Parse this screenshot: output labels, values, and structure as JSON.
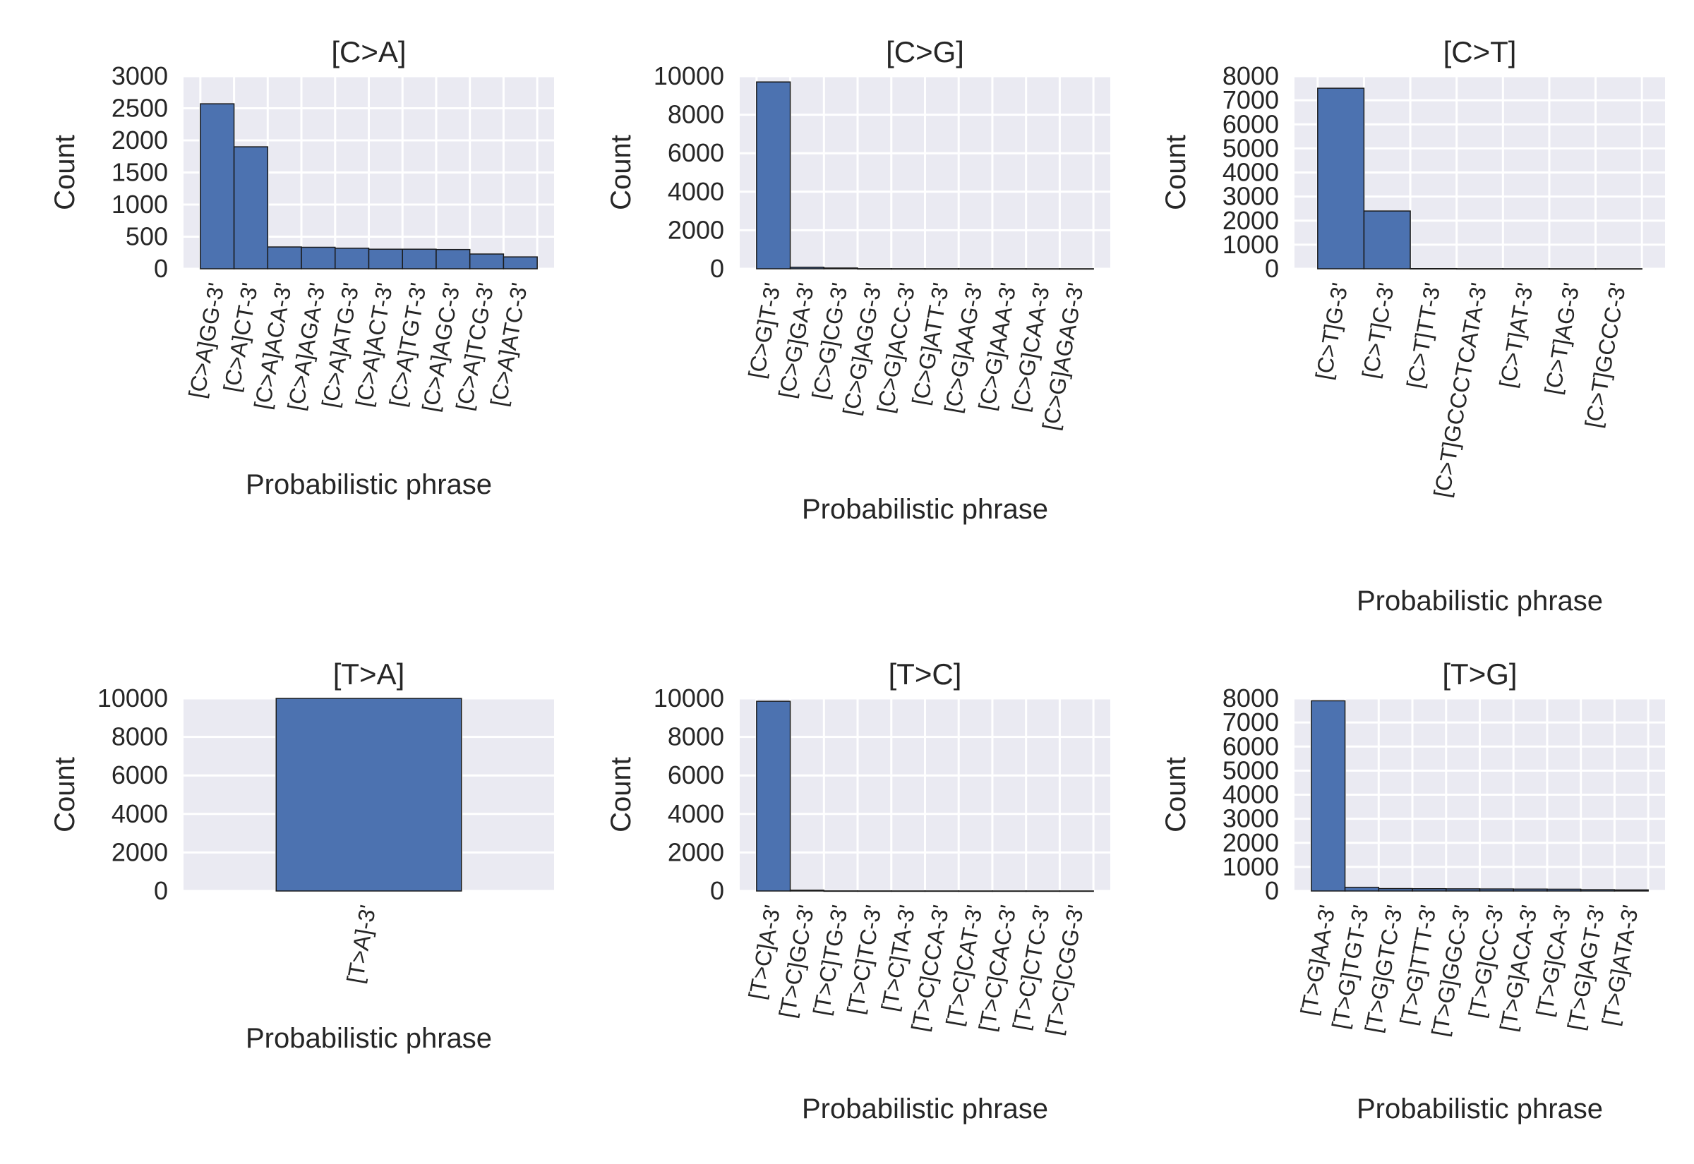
{
  "chart_data": [
    {
      "type": "bar",
      "title": "[C>A]",
      "xlabel": "Probabilistic phrase",
      "ylabel": "Count",
      "ylim": [
        0,
        3000
      ],
      "yticks": [
        "0",
        "500",
        "1000",
        "1500",
        "2000",
        "2500",
        "3000"
      ],
      "categories": [
        "[C>A]GG-3'",
        "[C>A]CT-3'",
        "[C>A]ACA-3'",
        "[C>A]AGA-3'",
        "[C>A]ATG-3'",
        "[C>A]ACT-3'",
        "[C>A]TGT-3'",
        "[C>A]AGC-3'",
        "[C>A]TCG-3'",
        "[C>A]ATC-3'"
      ],
      "values": [
        2570,
        1900,
        340,
        335,
        320,
        305,
        305,
        300,
        230,
        185
      ],
      "grid": true
    },
    {
      "type": "bar",
      "title": "[C>G]",
      "xlabel": "Probabilistic phrase",
      "ylabel": "Count",
      "ylim": [
        0,
        10000
      ],
      "yticks": [
        "0",
        "2000",
        "4000",
        "6000",
        "8000",
        "10000"
      ],
      "categories": [
        "[C>G]T-3'",
        "[C>G]GA-3'",
        "[C>G]CG-3'",
        "[C>G]AGG-3'",
        "[C>G]ACC-3'",
        "[C>G]ATT-3'",
        "[C>G]AAG-3'",
        "[C>G]AAA-3'",
        "[C>G]CAA-3'",
        "[C>G]AGAG-3'"
      ],
      "values": [
        9700,
        80,
        40,
        5,
        4,
        3,
        3,
        3,
        2,
        2
      ],
      "grid": true
    },
    {
      "type": "bar",
      "title": "[C>T]",
      "xlabel": "Probabilistic phrase",
      "ylabel": "Count",
      "ylim": [
        0,
        8000
      ],
      "yticks": [
        "0",
        "1000",
        "2000",
        "3000",
        "4000",
        "5000",
        "6000",
        "7000",
        "8000"
      ],
      "categories": [
        "[C>T]G-3'",
        "[C>T]C-3'",
        "[C>T]TT-3'",
        "[C>T]GCCCTCATA-3'",
        "[C>T]AT-3'",
        "[C>T]AG-3'",
        "[C>T]GCCC-3'"
      ],
      "values": [
        7500,
        2400,
        8,
        4,
        3,
        2,
        2
      ],
      "grid": true
    },
    {
      "type": "bar",
      "title": "[T>A]",
      "xlabel": "Probabilistic phrase",
      "ylabel": "Count",
      "ylim": [
        0,
        10000
      ],
      "yticks": [
        "0",
        "2000",
        "4000",
        "6000",
        "8000",
        "10000"
      ],
      "categories": [
        "[T>A]-3'"
      ],
      "values": [
        10000
      ],
      "grid": true
    },
    {
      "type": "bar",
      "title": "[T>C]",
      "xlabel": "Probabilistic phrase",
      "ylabel": "Count",
      "ylim": [
        0,
        10000
      ],
      "yticks": [
        "0",
        "2000",
        "4000",
        "6000",
        "8000",
        "10000"
      ],
      "categories": [
        "[T>C]A-3'",
        "[T>C]GC-3'",
        "[T>C]TG-3'",
        "[T>C]TC-3'",
        "[T>C]TA-3'",
        "[T>C]CCA-3'",
        "[T>C]CAT-3'",
        "[T>C]CAC-3'",
        "[T>C]CTC-3'",
        "[T>C]CGG-3'"
      ],
      "values": [
        9850,
        40,
        5,
        4,
        3,
        3,
        2,
        2,
        2,
        2
      ],
      "grid": true
    },
    {
      "type": "bar",
      "title": "[T>G]",
      "xlabel": "Probabilistic phrase",
      "ylabel": "Count",
      "ylim": [
        0,
        8000
      ],
      "yticks": [
        "0",
        "1000",
        "2000",
        "3000",
        "4000",
        "5000",
        "6000",
        "7000",
        "8000"
      ],
      "categories": [
        "[T>G]AA-3'",
        "[T>G]TGT-3'",
        "[T>G]GTC-3'",
        "[T>G]TTT-3'",
        "[T>G]GGC-3'",
        "[T>G]CC-3'",
        "[T>G]ACA-3'",
        "[T>G]CA-3'",
        "[T>G]AGT-3'",
        "[T>G]ATA-3'"
      ],
      "values": [
        7900,
        150,
        100,
        95,
        90,
        85,
        80,
        75,
        55,
        45
      ],
      "grid": true
    }
  ],
  "colors": {
    "bar": "#4c72b0",
    "bar_edge": "#1a1a1a",
    "plot_background": "#eaeaf2",
    "grid": "#ffffff",
    "text": "#262626"
  }
}
